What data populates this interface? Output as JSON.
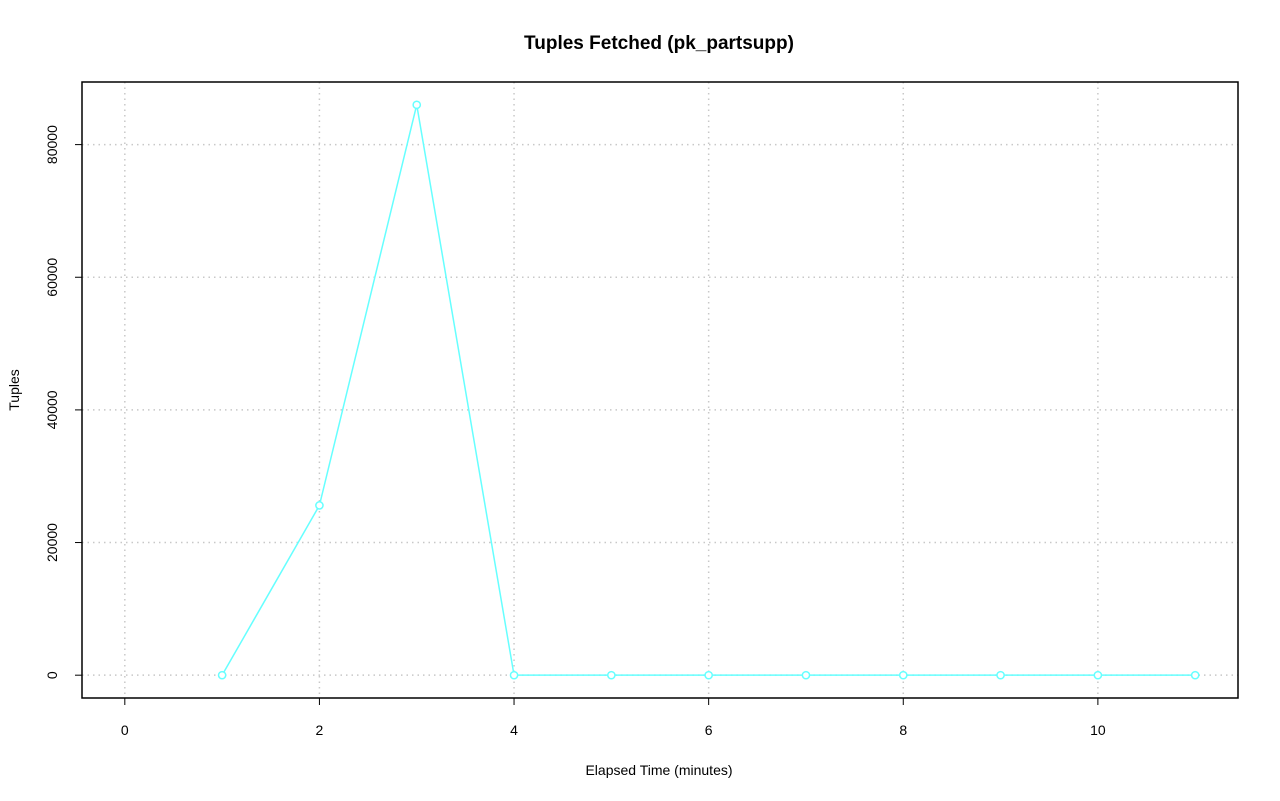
{
  "chart_data": {
    "type": "line",
    "title": "Tuples Fetched (pk_partsupp)",
    "x_label": "Elapsed Time (minutes)",
    "y_label": "Tuples",
    "x": [
      1,
      2,
      3,
      4,
      5,
      6,
      7,
      8,
      9,
      10,
      11
    ],
    "series": [
      {
        "name": "pk_partsupp",
        "color": "#66ffff",
        "values": [
          0,
          25600,
          86000,
          0,
          0,
          0,
          0,
          0,
          0,
          0,
          0
        ]
      }
    ],
    "xlim": [
      -0.44,
      11.44
    ],
    "xticks": [
      0,
      2,
      4,
      6,
      8,
      10
    ],
    "ylim": [
      -3440,
      89440
    ],
    "yticks": [
      0,
      20000,
      40000,
      60000,
      80000
    ],
    "grid": true
  }
}
